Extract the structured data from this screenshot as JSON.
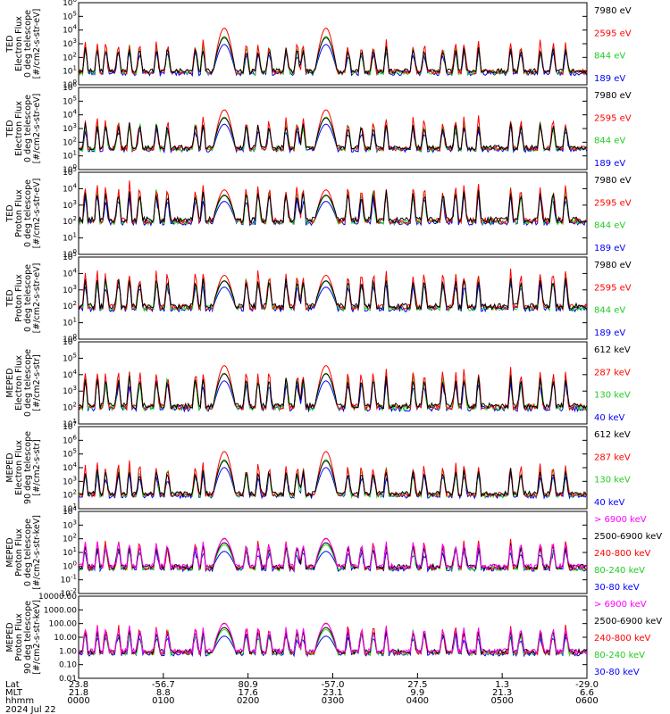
{
  "chart_data": {
    "type": "line",
    "date": "2024 Jul 22",
    "panels": [
      {
        "ylabel": [
          "TED",
          "Electron Flux",
          "0 deg telescope",
          "[#/cm2-s-str-eV]"
        ],
        "yscale": "log",
        "yticks_exp": [
          0,
          1,
          2,
          3,
          4,
          5,
          6
        ],
        "ylim_exp": [
          0,
          6
        ],
        "baseline_exp": 1.0,
        "channels": [
          {
            "label": "7980 eV",
            "color": "#000000"
          },
          {
            "label": "2595 eV",
            "color": "#ff0000"
          },
          {
            "label": "844 eV",
            "color": "#00cc00"
          },
          {
            "label": "189 eV",
            "color": "#0000ff"
          }
        ]
      },
      {
        "ylabel": [
          "TED",
          "Electron Flux",
          "0 deg telescope",
          "[#/cm2-s-str-eV]"
        ],
        "yscale": "log",
        "yticks_exp": [
          0,
          1,
          2,
          3,
          4,
          5,
          6
        ],
        "ylim_exp": [
          0,
          6
        ],
        "baseline_exp": 1.6,
        "channels": [
          {
            "label": "7980 eV",
            "color": "#000000"
          },
          {
            "label": "2595 eV",
            "color": "#ff0000"
          },
          {
            "label": "844 eV",
            "color": "#00cc00"
          },
          {
            "label": "189 eV",
            "color": "#0000ff"
          }
        ]
      },
      {
        "ylabel": [
          "TED",
          "Proton Flux",
          "0 deg telescope",
          "[#/cm2-s-str-eV]"
        ],
        "yscale": "log",
        "yticks_exp": [
          0,
          1,
          2,
          3,
          4,
          5
        ],
        "ylim_exp": [
          0,
          5
        ],
        "baseline_exp": 2.1,
        "channels": [
          {
            "label": "7980 eV",
            "color": "#000000"
          },
          {
            "label": "2595 eV",
            "color": "#ff0000"
          },
          {
            "label": "844 eV",
            "color": "#00cc00"
          },
          {
            "label": "189 eV",
            "color": "#0000ff"
          }
        ]
      },
      {
        "ylabel": [
          "TED",
          "Proton Flux",
          "0 deg telescope",
          "[#/cm2-s-str-eV]"
        ],
        "yscale": "log",
        "yticks_exp": [
          0,
          1,
          2,
          3,
          4,
          5
        ],
        "ylim_exp": [
          0,
          5
        ],
        "baseline_exp": 2.0,
        "channels": [
          {
            "label": "7980 eV",
            "color": "#000000"
          },
          {
            "label": "2595 eV",
            "color": "#ff0000"
          },
          {
            "label": "844 eV",
            "color": "#00cc00"
          },
          {
            "label": "189 eV",
            "color": "#0000ff"
          }
        ]
      },
      {
        "ylabel": [
          "MEPED",
          "Electron Flux",
          "0 deg telescope",
          "[#/cm2-s-str]"
        ],
        "yscale": "log",
        "yticks_exp": [
          1,
          2,
          3,
          4,
          5,
          6
        ],
        "ylim_exp": [
          1,
          6
        ],
        "baseline_exp": 2.1,
        "channels": [
          {
            "label": "612 keV",
            "color": "#000000"
          },
          {
            "label": "287 keV",
            "color": "#ff0000"
          },
          {
            "label": "130 keV",
            "color": "#00cc00"
          },
          {
            "label": "40 keV",
            "color": "#0000ff"
          }
        ]
      },
      {
        "ylabel": [
          "MEPED",
          "Electron Flux",
          "90 deg telescope",
          "[#/cm2-s-str]"
        ],
        "yscale": "log",
        "yticks_exp": [
          1,
          2,
          3,
          4,
          5,
          6,
          7
        ],
        "ylim_exp": [
          1,
          7
        ],
        "baseline_exp": 2.1,
        "channels": [
          {
            "label": "612 keV",
            "color": "#000000"
          },
          {
            "label": "287 keV",
            "color": "#ff0000"
          },
          {
            "label": "130 keV",
            "color": "#00cc00"
          },
          {
            "label": "40 keV",
            "color": "#0000ff"
          }
        ]
      },
      {
        "ylabel": [
          "MEPED",
          "Proton Flux",
          "0 deg telescope",
          "[#/cm2-s-str-keV]"
        ],
        "yscale": "log",
        "yticks_exp": [
          -2,
          -1,
          0,
          1,
          2,
          3,
          4
        ],
        "ylim_exp": [
          -2,
          4
        ],
        "baseline_exp": 0.0,
        "channels": [
          {
            "label": "> 6900 keV",
            "color": "#ff00ff"
          },
          {
            "label": "2500-6900 keV",
            "color": "#000000"
          },
          {
            "label": "240-800 keV",
            "color": "#ff0000"
          },
          {
            "label": "80-240 keV",
            "color": "#00cc00"
          },
          {
            "label": "30-80 keV",
            "color": "#0000ff"
          }
        ]
      },
      {
        "ylabel": [
          "MEPED",
          "Proton Flux",
          "90 deg telescope",
          "[#/cm2-s-str-keV]"
        ],
        "yscale": "log",
        "yticks_exp": [
          -2,
          -1,
          0,
          1,
          2,
          3,
          4
        ],
        "ytick_labels": [
          "0.01",
          "0.10",
          "1.00",
          "10.00",
          "100.00",
          "1000.00",
          "10000.00"
        ],
        "ylim_exp": [
          -2,
          4
        ],
        "baseline_exp": 0.0,
        "channels": [
          {
            "label": "> 6900 keV",
            "color": "#ff00ff"
          },
          {
            "label": "2500-6900 keV",
            "color": "#000000"
          },
          {
            "label": "240-800 keV",
            "color": "#ff0000"
          },
          {
            "label": "80-240 keV",
            "color": "#00cc00"
          },
          {
            "label": "30-80 keV",
            "color": "#0000ff"
          }
        ]
      }
    ],
    "x_axis": {
      "row_labels": [
        "Lat",
        "MLT",
        "hhmm"
      ],
      "ticks": [
        {
          "lat": "23.8",
          "mlt": "21.8",
          "hhmm": "0000"
        },
        {
          "lat": "-56.7",
          "mlt": "8.8",
          "hhmm": "0100"
        },
        {
          "lat": "80.9",
          "mlt": "17.6",
          "hhmm": "0200"
        },
        {
          "lat": "-57.0",
          "mlt": "23.1",
          "hhmm": "0300"
        },
        {
          "lat": "27.5",
          "mlt": "9.9",
          "hhmm": "0400"
        },
        {
          "lat": "1.3",
          "mlt": "21.3",
          "hhmm": "0500"
        },
        {
          "lat": "-29.0",
          "mlt": "6.6",
          "hhmm": "0600"
        }
      ]
    },
    "events": {
      "wide_peaks_hr": [
        1.72,
        2.92
      ],
      "spikes_hr": [
        0.08,
        0.22,
        0.32,
        0.47,
        0.6,
        0.72,
        0.92,
        1.05,
        1.38,
        1.47,
        1.98,
        2.12,
        2.25,
        2.45,
        2.58,
        2.65,
        3.18,
        3.34,
        3.48,
        3.63,
        3.95,
        4.08,
        4.3,
        4.45,
        4.55,
        4.72,
        5.1,
        5.22,
        5.45,
        5.6,
        5.75
      ]
    }
  }
}
